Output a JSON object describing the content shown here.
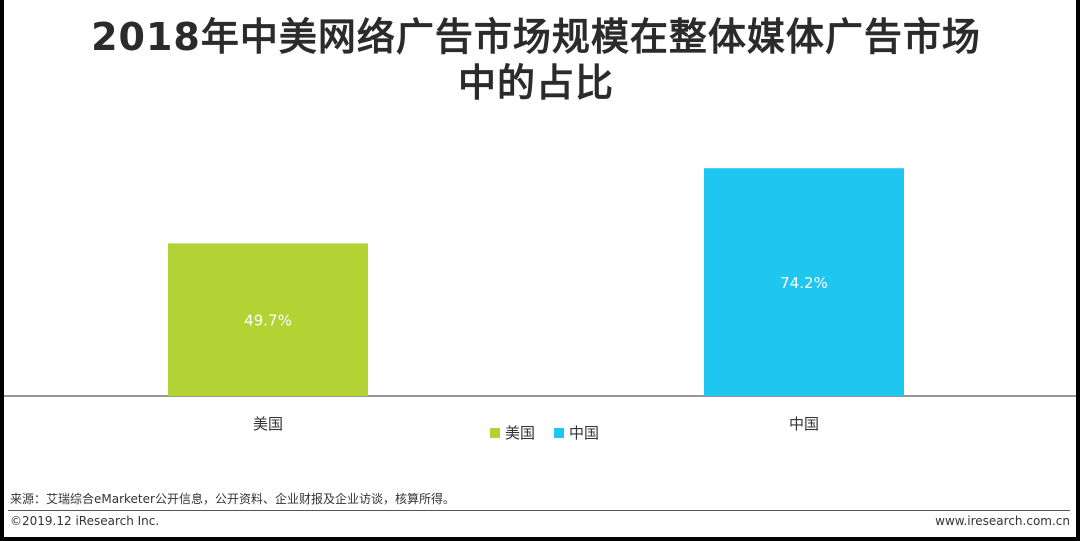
{
  "title_lines": [
    "2018年中美网络广告市场规模在整体媒体广告市场",
    "中的占比"
  ],
  "chart_data": {
    "type": "bar",
    "categories": [
      "美国",
      "中国"
    ],
    "series": [
      {
        "name": "美国",
        "values": [
          49.7,
          null
        ],
        "labels": [
          "49.7%",
          ""
        ],
        "color": "#b3d234"
      },
      {
        "name": "中国",
        "values": [
          null,
          74.2
        ],
        "labels": [
          "",
          "74.2%"
        ],
        "color": "#1ec6f0"
      }
    ],
    "ylim": [
      0,
      100
    ],
    "grid": false,
    "legend_position": "bottom-center"
  },
  "source": "来源：艾瑞综合eMarketer公开信息，公开资料、企业财报及企业访谈，核算所得。",
  "copyright": "©2019.12 iResearch Inc.",
  "website": "www.iresearch.com.cn"
}
